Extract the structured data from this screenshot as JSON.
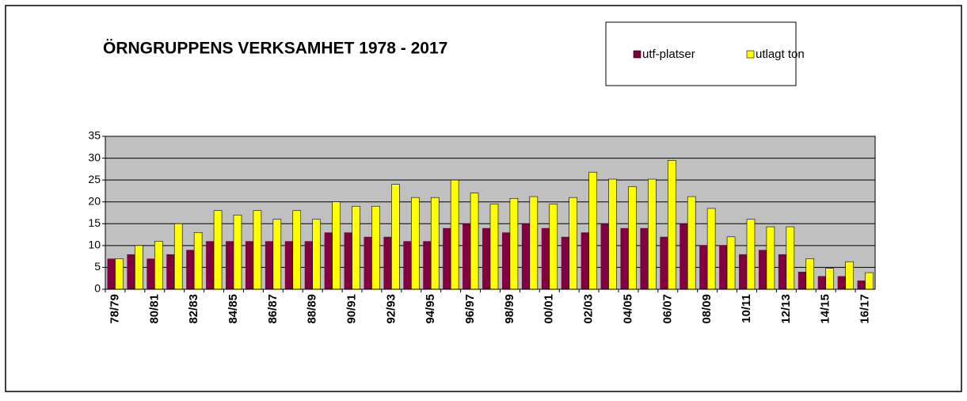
{
  "chart_data": {
    "type": "bar",
    "title": "ÖRNGRUPPENS VERKSAMHET 1978 - 2017",
    "categories": [
      "78/79",
      null,
      "80/81",
      null,
      "82/83",
      null,
      "84/85",
      null,
      "86/87",
      null,
      "88/89",
      null,
      "90/91",
      null,
      "92/93",
      null,
      "94/95",
      null,
      "96/97",
      null,
      "98/99",
      null,
      "00/01",
      null,
      "02/03",
      null,
      "04/05",
      null,
      "06/07",
      null,
      "08/09",
      null,
      "10/11",
      null,
      "12/13",
      null,
      "14/15",
      null,
      "16/17"
    ],
    "series": [
      {
        "name": "utf-platser",
        "color": "#800040",
        "values": [
          7,
          8,
          7,
          8,
          9,
          11,
          11,
          11,
          11,
          11,
          11,
          13,
          13,
          12,
          12,
          11,
          11,
          14,
          15,
          14,
          13,
          15,
          14,
          12,
          13,
          15,
          14,
          14,
          12,
          15,
          10,
          10,
          8,
          9,
          8,
          4,
          3,
          3,
          2
        ]
      },
      {
        "name": "utlagt ton",
        "color": "#ffff00",
        "values": [
          7,
          10,
          11,
          15,
          13,
          18,
          17,
          18,
          16,
          18,
          16,
          20,
          19,
          19,
          24,
          21,
          21,
          25,
          22,
          19.5,
          20.8,
          21.2,
          19.5,
          21,
          26.8,
          25.2,
          23.5,
          25.2,
          29.5,
          21.2,
          18.5,
          12,
          16,
          14.3,
          14.3,
          7,
          4.8,
          6.3,
          3.8
        ]
      }
    ],
    "ylim": [
      0,
      35
    ],
    "yticks": [
      0,
      5,
      10,
      15,
      20,
      25,
      30,
      35
    ],
    "grid": true,
    "plot_background": "#c0c0c0"
  }
}
